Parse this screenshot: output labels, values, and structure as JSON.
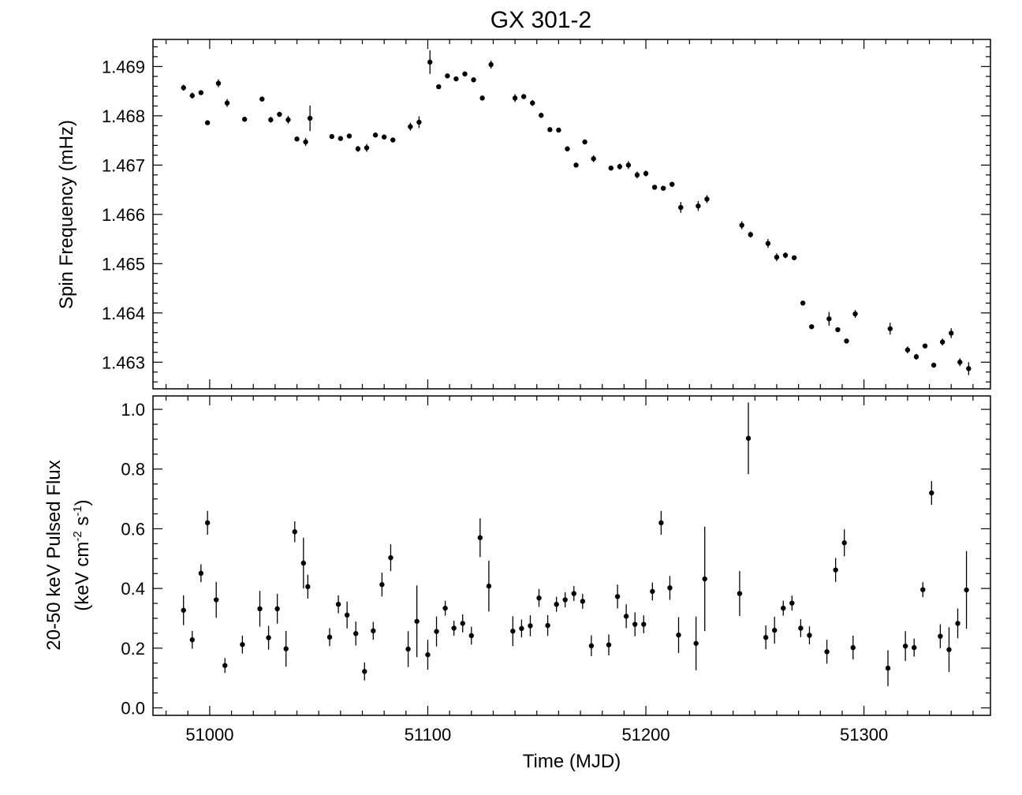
{
  "chart_data": [
    {
      "type": "scatter",
      "title": "GX 301-2",
      "xlabel": "",
      "ylabel": "Spin Frequency (mHz)",
      "xlim": [
        50974,
        51358
      ],
      "ylim": [
        1.46246,
        1.46955
      ],
      "x_ticks": [
        "51000",
        "51100",
        "51200",
        "51300"
      ],
      "y_ticks": [
        "1.463",
        "1.464",
        "1.465",
        "1.466",
        "1.467",
        "1.468",
        "1.469"
      ],
      "error_bars": true,
      "series": [
        {
          "x": [
            50988,
            50992,
            50996,
            50999,
            51004,
            51008,
            51016,
            51024,
            51028,
            51032,
            51036,
            51040,
            51044,
            51046,
            51056,
            51060,
            51064,
            51068,
            51072,
            51076,
            51080,
            51084,
            51092,
            51096,
            51101,
            51105,
            51109,
            51113,
            51117,
            51121,
            51125,
            51129,
            51140,
            51144,
            51148,
            51152,
            51156,
            51160,
            51164,
            51168,
            51172,
            51176,
            51184,
            51188,
            51192,
            51196,
            51200,
            51204,
            51208,
            51212,
            51216,
            51224,
            51228,
            51244,
            51248,
            51256,
            51260,
            51264,
            51268,
            51272,
            51276,
            51284,
            51288,
            51292,
            51296,
            51312,
            51320,
            51324,
            51328,
            51332,
            51336,
            51340,
            51344,
            51348
          ],
          "y": [
            1.46857,
            1.46841,
            1.46847,
            1.46786,
            1.46866,
            1.46826,
            1.46793,
            1.46834,
            1.46792,
            1.46803,
            1.46792,
            1.46753,
            1.46747,
            1.46795,
            1.46758,
            1.46754,
            1.46759,
            1.46733,
            1.46735,
            1.46761,
            1.46757,
            1.46751,
            1.46778,
            1.46787,
            1.46909,
            1.46859,
            1.46881,
            1.46875,
            1.46885,
            1.46873,
            1.46836,
            1.46904,
            1.46836,
            1.46839,
            1.46826,
            1.46801,
            1.46772,
            1.46771,
            1.46733,
            1.467,
            1.46747,
            1.46713,
            1.46694,
            1.46697,
            1.467,
            1.4668,
            1.46683,
            1.46655,
            1.46653,
            1.46661,
            1.46614,
            1.46617,
            1.46631,
            1.46578,
            1.46559,
            1.46541,
            1.46513,
            1.46517,
            1.46512,
            1.4642,
            1.46372,
            1.46388,
            1.46366,
            1.46343,
            1.46398,
            1.46368,
            1.46325,
            1.46311,
            1.46333,
            1.46294,
            1.46341,
            1.46359,
            1.463,
            1.46287
          ],
          "yerr": [
            6e-05,
            6e-05,
            4e-05,
            3e-05,
            8e-05,
            8e-05,
            4e-05,
            5e-05,
            6e-05,
            5e-05,
            8e-05,
            4e-05,
            8e-05,
            0.00026,
            4e-05,
            4e-05,
            4e-05,
            6e-05,
            8e-05,
            4e-05,
            4e-05,
            4e-05,
            8e-05,
            0.00012,
            0.00024,
            4e-05,
            4e-05,
            4e-05,
            4e-05,
            5e-05,
            5e-05,
            8e-05,
            8e-05,
            5e-05,
            6e-05,
            5e-05,
            4e-05,
            4e-05,
            5e-05,
            4e-05,
            4e-05,
            7e-05,
            5e-05,
            6e-05,
            8e-05,
            7e-05,
            6e-05,
            5e-05,
            4e-05,
            5e-05,
            0.00011,
            0.0001,
            8e-05,
            8e-05,
            6e-05,
            9e-05,
            8e-05,
            6e-05,
            4e-05,
            4e-05,
            4e-05,
            0.00014,
            4e-05,
            5e-05,
            8e-05,
            0.00012,
            7e-05,
            6e-05,
            4e-05,
            4e-05,
            7e-05,
            0.0001,
            8e-05,
            0.00013
          ]
        }
      ]
    },
    {
      "type": "scatter",
      "title": "",
      "xlabel": "Time (MJD)",
      "ylabel_line1": "20-50 keV Pulsed Flux",
      "ylabel_line2": {
        "a": "(keV cm",
        "sup1": "-2",
        "b": " s",
        "sup2": "-1",
        "c": ")"
      },
      "xlim": [
        50974,
        51358
      ],
      "ylim": [
        -0.025,
        1.045
      ],
      "x_ticks": [
        "51000",
        "51100",
        "51200",
        "51300"
      ],
      "y_ticks": [
        "0.0",
        "0.2",
        "0.4",
        "0.6",
        "0.8",
        "1.0"
      ],
      "error_bars": true,
      "series": [
        {
          "x": [
            50988,
            50992,
            50996,
            50999,
            51003,
            51007,
            51015,
            51023,
            51027,
            51031,
            51035,
            51039,
            51043,
            51045,
            51055,
            51059,
            51063,
            51067,
            51071,
            51075,
            51079,
            51083,
            51091,
            51095,
            51100,
            51104,
            51108,
            51112,
            51116,
            51120,
            51124,
            51128,
            51139,
            51143,
            51147,
            51151,
            51155,
            51159,
            51163,
            51167,
            51171,
            51175,
            51183,
            51187,
            51191,
            51195,
            51199,
            51203,
            51207,
            51211,
            51215,
            51223,
            51227,
            51243,
            51247,
            51255,
            51259,
            51263,
            51267,
            51271,
            51275,
            51283,
            51287,
            51291,
            51295,
            51311,
            51319,
            51323,
            51327,
            51331,
            51335,
            51339,
            51343,
            51347
          ],
          "y": [
            0.327,
            0.228,
            0.451,
            0.62,
            0.362,
            0.142,
            0.212,
            0.332,
            0.235,
            0.332,
            0.198,
            0.59,
            0.485,
            0.406,
            0.237,
            0.347,
            0.311,
            0.249,
            0.122,
            0.258,
            0.413,
            0.503,
            0.197,
            0.29,
            0.178,
            0.256,
            0.334,
            0.267,
            0.283,
            0.242,
            0.57,
            0.408,
            0.257,
            0.266,
            0.275,
            0.368,
            0.276,
            0.347,
            0.362,
            0.383,
            0.357,
            0.208,
            0.211,
            0.373,
            0.307,
            0.28,
            0.28,
            0.39,
            0.62,
            0.402,
            0.244,
            0.216,
            0.432,
            0.383,
            0.903,
            0.236,
            0.26,
            0.334,
            0.351,
            0.267,
            0.243,
            0.188,
            0.462,
            0.553,
            0.202,
            0.133,
            0.207,
            0.202,
            0.396,
            0.72,
            0.24,
            0.195,
            0.283,
            0.395
          ],
          "yerr": [
            0.05,
            0.03,
            0.03,
            0.04,
            0.06,
            0.025,
            0.03,
            0.06,
            0.04,
            0.05,
            0.06,
            0.035,
            0.085,
            0.04,
            0.03,
            0.03,
            0.045,
            0.04,
            0.03,
            0.03,
            0.04,
            0.045,
            0.06,
            0.12,
            0.05,
            0.05,
            0.025,
            0.025,
            0.03,
            0.03,
            0.065,
            0.085,
            0.05,
            0.03,
            0.035,
            0.03,
            0.035,
            0.025,
            0.025,
            0.025,
            0.025,
            0.035,
            0.035,
            0.04,
            0.04,
            0.04,
            0.03,
            0.03,
            0.04,
            0.04,
            0.06,
            0.09,
            0.175,
            0.075,
            0.12,
            0.04,
            0.045,
            0.025,
            0.025,
            0.03,
            0.03,
            0.04,
            0.04,
            0.045,
            0.04,
            0.06,
            0.05,
            0.03,
            0.025,
            0.04,
            0.04,
            0.075,
            0.05,
            0.13
          ]
        }
      ]
    }
  ]
}
